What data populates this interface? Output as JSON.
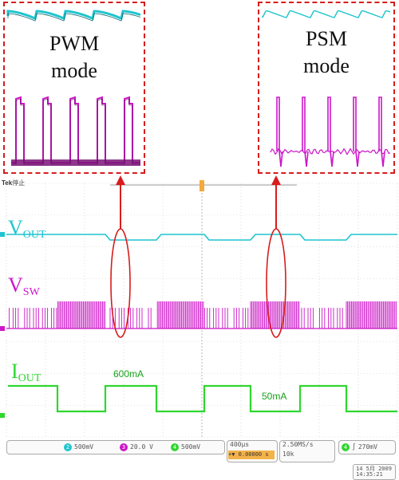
{
  "chart_data": {
    "type": "line",
    "title": "",
    "xlabel": "",
    "ylabel": "",
    "series": [
      {
        "name": "V_OUT",
        "label_main": "V",
        "label_sub": "OUT",
        "color": "#1fc4cf",
        "description_levels": [
          "pwm_dip",
          "psm_high"
        ]
      },
      {
        "name": "V_SW",
        "label_main": "V",
        "label_sub": "SW",
        "color": "#cc16c8"
      },
      {
        "name": "I_OUT",
        "label_main": "I",
        "label_sub": "OUT",
        "color": "#2fd62f"
      }
    ],
    "load_steps": [
      {
        "label": "600mA",
        "level": "high"
      },
      {
        "label": "50mA",
        "level": "low"
      }
    ],
    "grid": true
  },
  "insets": {
    "pwm": {
      "line1": "PWM",
      "line2": "mode"
    },
    "psm": {
      "line1": "PSM",
      "line2": "mode"
    }
  },
  "scope": {
    "brand": "Tek",
    "state": "停止",
    "status": {
      "ch2": "500mV",
      "ch3": "20.0 V",
      "ch4": "500mV",
      "timebase": "400µs",
      "trigger_pos": "+▼ 0.00000 s",
      "sample_rate": "2.50MS/s",
      "record": "10k",
      "trigger_level": "270mV",
      "date": "14 5月 2009",
      "time": "14:35:21"
    }
  },
  "colors": {
    "vout": "#1fc4cf",
    "vsw": "#cc16c8",
    "iout": "#2fd62f",
    "annotation": "#d81c1c",
    "grid": "#c8c8c8"
  }
}
